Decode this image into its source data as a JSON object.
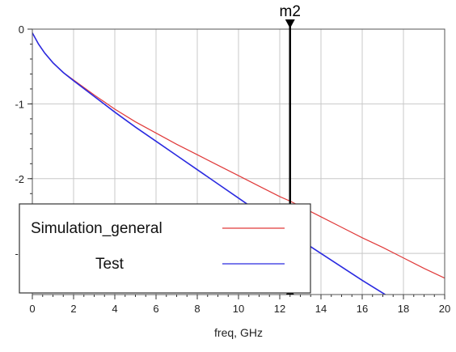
{
  "chart_data": {
    "type": "line",
    "xlabel": "freq, GHz",
    "ylabel": "",
    "xlim": [
      0,
      20
    ],
    "ylim": [
      -3.55,
      0
    ],
    "x_ticks": [
      0,
      2,
      4,
      6,
      8,
      10,
      12,
      14,
      16,
      18,
      20
    ],
    "y_ticks": [
      0,
      -1,
      -2,
      -3
    ],
    "grid": true,
    "legend_position": "bottom-left",
    "colors": {
      "simulation": "#e03a3a",
      "test": "#2a2ae0",
      "grid": "#c8c8c8",
      "frame": "#555555"
    },
    "marker": {
      "label": "m2",
      "x": 12.5
    },
    "series": [
      {
        "name": "Simulation_general",
        "color": "#e03a3a",
        "x": [
          0,
          0.1,
          0.3,
          0.6,
          1,
          1.5,
          2,
          3,
          4,
          5,
          6,
          7,
          8,
          9,
          10,
          11,
          12,
          12.5,
          13,
          14,
          15,
          16,
          17,
          18,
          19,
          20
        ],
        "y": [
          -0.05,
          -0.1,
          -0.2,
          -0.32,
          -0.45,
          -0.58,
          -0.68,
          -0.88,
          -1.07,
          -1.24,
          -1.39,
          -1.54,
          -1.68,
          -1.82,
          -1.96,
          -2.1,
          -2.24,
          -2.3,
          -2.37,
          -2.51,
          -2.65,
          -2.79,
          -2.92,
          -3.06,
          -3.2,
          -3.33
        ]
      },
      {
        "name": "Test",
        "color": "#2a2ae0",
        "x": [
          0,
          0.1,
          0.3,
          0.6,
          1,
          1.5,
          2,
          3,
          4,
          5,
          6,
          7,
          8,
          9,
          10,
          11,
          12,
          12.5,
          13,
          14,
          15,
          16,
          17,
          18,
          19,
          20
        ],
        "y": [
          -0.05,
          -0.1,
          -0.2,
          -0.32,
          -0.45,
          -0.58,
          -0.69,
          -0.9,
          -1.11,
          -1.31,
          -1.5,
          -1.69,
          -1.88,
          -2.07,
          -2.26,
          -2.45,
          -2.64,
          -2.73,
          -2.82,
          -3.0,
          -3.18,
          -3.36,
          -3.53,
          -3.7,
          -3.88,
          -4.06
        ]
      }
    ],
    "legend": [
      {
        "label": "Simulation_general",
        "color": "#e03a3a"
      },
      {
        "label": "Test",
        "color": "#2a2ae0"
      }
    ]
  }
}
